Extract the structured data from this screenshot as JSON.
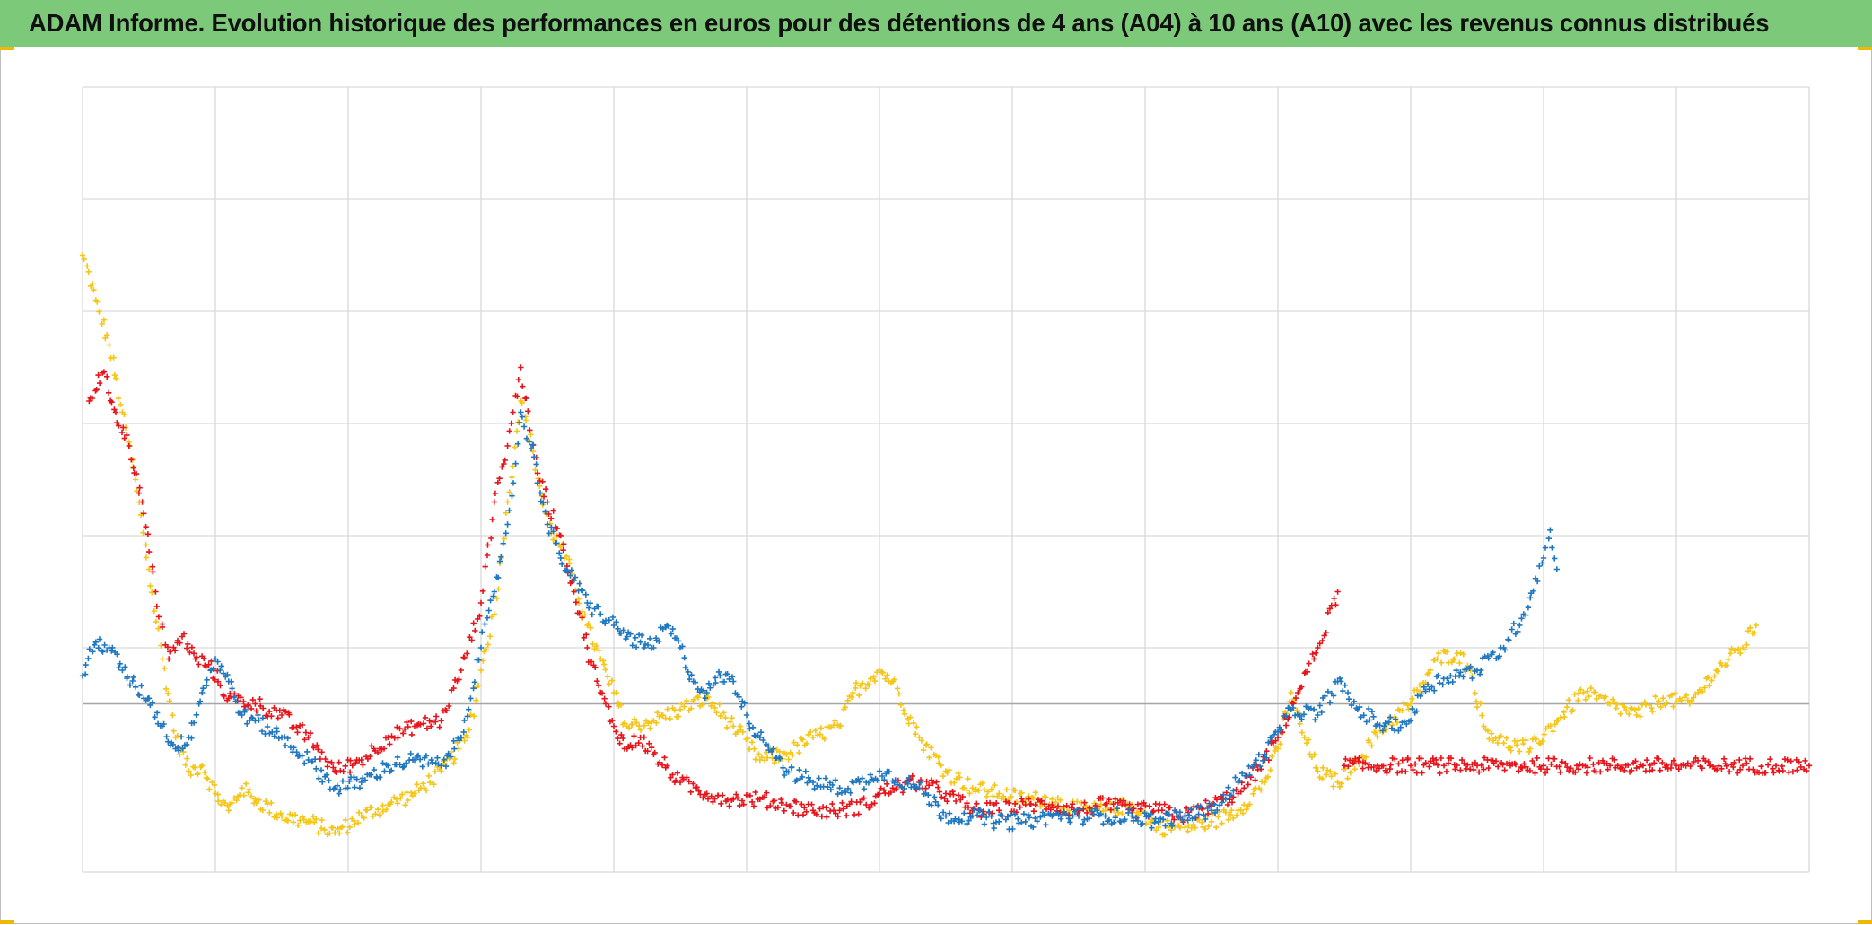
{
  "title": "ADAM Informe. Evolution historique des performances en euros pour des détentions de 4 ans (A04) à 10 ans (A10) avec les revenus connus distribués",
  "colors": {
    "title_background": "#7dc97a",
    "grid": "#d9d9d9",
    "zero_line": "#a6a6a6",
    "corner_marks": "#f2b700"
  },
  "chart_data": {
    "type": "scatter",
    "marker": "plus",
    "grid": true,
    "legend": "none",
    "xlabel": "",
    "ylabel": "",
    "xlim": [
      0,
      13
    ],
    "ylim": [
      -1.5,
      5.5
    ],
    "x_tick_count": 13,
    "y_gridlines": [
      5.5,
      4.5,
      3.5,
      2.5,
      1.5,
      0.5,
      -1.5
    ],
    "zero_line": 0,
    "series": [
      {
        "color": "#f5c518",
        "points": [
          [
            0.0,
            4.0
          ],
          [
            0.1,
            3.6
          ],
          [
            0.2,
            3.2
          ],
          [
            0.3,
            2.6
          ],
          [
            0.4,
            2.0
          ],
          [
            0.5,
            1.2
          ],
          [
            0.6,
            0.4
          ],
          [
            0.7,
            -0.3
          ],
          [
            0.8,
            -0.6
          ],
          [
            0.9,
            -0.55
          ],
          [
            1.0,
            -0.8
          ],
          [
            1.1,
            -0.95
          ],
          [
            1.2,
            -0.75
          ],
          [
            1.3,
            -0.85
          ],
          [
            1.5,
            -1.0
          ],
          [
            1.7,
            -1.05
          ],
          [
            1.9,
            -1.15
          ],
          [
            2.1,
            -1.0
          ],
          [
            2.3,
            -0.9
          ],
          [
            2.5,
            -0.8
          ],
          [
            2.7,
            -0.6
          ],
          [
            2.9,
            -0.3
          ],
          [
            3.0,
            0.3
          ],
          [
            3.1,
            0.8
          ],
          [
            3.2,
            1.8
          ],
          [
            3.3,
            2.7
          ],
          [
            3.4,
            2.2
          ],
          [
            3.5,
            1.6
          ],
          [
            3.6,
            1.4
          ],
          [
            3.7,
            1.1
          ],
          [
            3.8,
            0.7
          ],
          [
            3.9,
            0.4
          ],
          [
            4.0,
            0.1
          ],
          [
            4.1,
            -0.2
          ],
          [
            4.3,
            -0.15
          ],
          [
            4.5,
            -0.05
          ],
          [
            4.7,
            0.05
          ],
          [
            4.9,
            -0.2
          ],
          [
            5.1,
            -0.5
          ],
          [
            5.3,
            -0.45
          ],
          [
            5.5,
            -0.3
          ],
          [
            5.7,
            -0.2
          ],
          [
            5.8,
            0.1
          ],
          [
            6.0,
            0.3
          ],
          [
            6.1,
            0.2
          ],
          [
            6.3,
            -0.3
          ],
          [
            6.5,
            -0.6
          ],
          [
            6.7,
            -0.75
          ],
          [
            6.9,
            -0.8
          ],
          [
            7.1,
            -0.85
          ],
          [
            7.3,
            -0.85
          ],
          [
            7.5,
            -0.95
          ],
          [
            7.7,
            -0.95
          ],
          [
            7.9,
            -0.9
          ],
          [
            8.1,
            -1.1
          ],
          [
            8.3,
            -1.1
          ],
          [
            8.5,
            -1.05
          ],
          [
            8.7,
            -0.95
          ],
          [
            8.9,
            -0.7
          ],
          [
            9.0,
            -0.4
          ],
          [
            9.1,
            0.1
          ],
          [
            9.2,
            -0.3
          ],
          [
            9.3,
            -0.6
          ],
          [
            9.45,
            -0.7
          ],
          [
            9.6,
            -0.5
          ],
          [
            9.8,
            -0.2
          ],
          [
            10.0,
            0.0
          ],
          [
            10.2,
            0.4
          ],
          [
            10.35,
            0.45
          ],
          [
            10.45,
            0.3
          ],
          [
            10.55,
            -0.2
          ],
          [
            10.7,
            -0.35
          ],
          [
            10.9,
            -0.4
          ],
          [
            11.1,
            -0.15
          ],
          [
            11.3,
            0.1
          ],
          [
            11.5,
            0.0
          ],
          [
            11.7,
            -0.1
          ],
          [
            11.9,
            0.05
          ],
          [
            12.1,
            0.0
          ],
          [
            12.3,
            0.3
          ],
          [
            12.5,
            0.5
          ],
          [
            12.6,
            0.7
          ]
        ]
      },
      {
        "color": "#e8141b",
        "points": [
          [
            0.05,
            2.7
          ],
          [
            0.15,
            2.95
          ],
          [
            0.25,
            2.6
          ],
          [
            0.35,
            2.3
          ],
          [
            0.45,
            1.8
          ],
          [
            0.55,
            1.0
          ],
          [
            0.65,
            0.4
          ],
          [
            0.75,
            0.6
          ],
          [
            0.85,
            0.4
          ],
          [
            0.95,
            0.35
          ],
          [
            1.1,
            0.05
          ],
          [
            1.3,
            0.0
          ],
          [
            1.5,
            -0.1
          ],
          [
            1.7,
            -0.3
          ],
          [
            1.9,
            -0.6
          ],
          [
            2.1,
            -0.5
          ],
          [
            2.3,
            -0.3
          ],
          [
            2.5,
            -0.2
          ],
          [
            2.7,
            -0.15
          ],
          [
            2.85,
            0.3
          ],
          [
            3.0,
            0.9
          ],
          [
            3.1,
            1.8
          ],
          [
            3.2,
            2.3
          ],
          [
            3.3,
            3.0
          ],
          [
            3.4,
            2.2
          ],
          [
            3.5,
            1.8
          ],
          [
            3.6,
            1.5
          ],
          [
            3.7,
            1.0
          ],
          [
            3.8,
            0.5
          ],
          [
            3.9,
            0.1
          ],
          [
            4.0,
            -0.2
          ],
          [
            4.1,
            -0.4
          ],
          [
            4.2,
            -0.3
          ],
          [
            4.3,
            -0.45
          ],
          [
            4.5,
            -0.7
          ],
          [
            4.7,
            -0.8
          ],
          [
            4.9,
            -0.85
          ],
          [
            5.1,
            -0.85
          ],
          [
            5.3,
            -0.9
          ],
          [
            5.5,
            -0.95
          ],
          [
            5.7,
            -0.95
          ],
          [
            5.9,
            -0.9
          ],
          [
            6.0,
            -0.8
          ],
          [
            6.1,
            -0.75
          ],
          [
            6.3,
            -0.7
          ],
          [
            6.5,
            -0.8
          ],
          [
            6.7,
            -0.95
          ],
          [
            6.9,
            -0.95
          ],
          [
            7.1,
            -0.9
          ],
          [
            7.3,
            -0.9
          ],
          [
            7.5,
            -0.95
          ],
          [
            7.7,
            -0.9
          ],
          [
            7.9,
            -0.95
          ],
          [
            8.1,
            -0.95
          ],
          [
            8.3,
            -1.0
          ],
          [
            8.5,
            -0.9
          ],
          [
            8.7,
            -0.8
          ],
          [
            8.9,
            -0.5
          ],
          [
            9.0,
            -0.3
          ],
          [
            9.15,
            0.1
          ],
          [
            9.3,
            0.5
          ],
          [
            9.45,
            1.0
          ]
        ]
      },
      {
        "color": "#e8141b",
        "points": [
          [
            9.5,
            -0.55
          ],
          [
            9.75,
            -0.55
          ],
          [
            10.0,
            -0.55
          ],
          [
            10.25,
            -0.55
          ],
          [
            10.5,
            -0.55
          ],
          [
            10.75,
            -0.55
          ],
          [
            11.0,
            -0.55
          ],
          [
            11.25,
            -0.55
          ],
          [
            11.5,
            -0.55
          ],
          [
            11.75,
            -0.55
          ],
          [
            12.0,
            -0.55
          ],
          [
            12.25,
            -0.55
          ],
          [
            12.5,
            -0.55
          ],
          [
            12.75,
            -0.55
          ],
          [
            13.0,
            -0.55
          ]
        ]
      },
      {
        "color": "#1f77c0",
        "points": [
          [
            0.0,
            0.25
          ],
          [
            0.1,
            0.55
          ],
          [
            0.2,
            0.5
          ],
          [
            0.3,
            0.3
          ],
          [
            0.4,
            0.15
          ],
          [
            0.5,
            0.05
          ],
          [
            0.6,
            -0.2
          ],
          [
            0.7,
            -0.4
          ],
          [
            0.8,
            -0.3
          ],
          [
            0.9,
            0.1
          ],
          [
            1.0,
            0.4
          ],
          [
            1.1,
            0.2
          ],
          [
            1.2,
            -0.1
          ],
          [
            1.3,
            -0.15
          ],
          [
            1.5,
            -0.3
          ],
          [
            1.7,
            -0.5
          ],
          [
            1.9,
            -0.75
          ],
          [
            2.1,
            -0.7
          ],
          [
            2.3,
            -0.55
          ],
          [
            2.5,
            -0.5
          ],
          [
            2.7,
            -0.55
          ],
          [
            2.85,
            -0.3
          ],
          [
            3.0,
            0.5
          ],
          [
            3.1,
            1.0
          ],
          [
            3.2,
            1.6
          ],
          [
            3.3,
            2.6
          ],
          [
            3.4,
            2.2
          ],
          [
            3.5,
            1.6
          ],
          [
            3.6,
            1.3
          ],
          [
            3.7,
            1.1
          ],
          [
            3.8,
            0.9
          ],
          [
            3.9,
            0.8
          ],
          [
            4.0,
            0.7
          ],
          [
            4.1,
            0.6
          ],
          [
            4.2,
            0.55
          ],
          [
            4.3,
            0.5
          ],
          [
            4.4,
            0.7
          ],
          [
            4.5,
            0.5
          ],
          [
            4.6,
            0.2
          ],
          [
            4.7,
            0.1
          ],
          [
            4.8,
            0.25
          ],
          [
            4.9,
            0.2
          ],
          [
            5.0,
            -0.1
          ],
          [
            5.1,
            -0.3
          ],
          [
            5.2,
            -0.4
          ],
          [
            5.3,
            -0.6
          ],
          [
            5.5,
            -0.7
          ],
          [
            5.7,
            -0.75
          ],
          [
            5.9,
            -0.7
          ],
          [
            6.0,
            -0.6
          ],
          [
            6.2,
            -0.7
          ],
          [
            6.3,
            -0.75
          ],
          [
            6.5,
            -1.0
          ],
          [
            6.7,
            -1.0
          ],
          [
            6.9,
            -1.05
          ],
          [
            7.1,
            -1.05
          ],
          [
            7.3,
            -1.0
          ],
          [
            7.5,
            -1.0
          ],
          [
            7.7,
            -1.0
          ],
          [
            7.9,
            -1.0
          ],
          [
            8.1,
            -1.05
          ],
          [
            8.3,
            -1.0
          ],
          [
            8.5,
            -0.95
          ],
          [
            8.7,
            -0.7
          ],
          [
            8.9,
            -0.45
          ],
          [
            9.0,
            -0.25
          ],
          [
            9.1,
            -0.05
          ],
          [
            9.3,
            -0.1
          ],
          [
            9.45,
            0.2
          ],
          [
            9.6,
            -0.05
          ],
          [
            9.8,
            -0.2
          ],
          [
            10.0,
            -0.15
          ],
          [
            10.1,
            0.15
          ],
          [
            10.3,
            0.25
          ],
          [
            10.5,
            0.3
          ],
          [
            10.7,
            0.5
          ],
          [
            10.85,
            0.8
          ],
          [
            11.0,
            1.3
          ],
          [
            11.05,
            1.55
          ],
          [
            11.1,
            1.2
          ]
        ]
      }
    ]
  }
}
